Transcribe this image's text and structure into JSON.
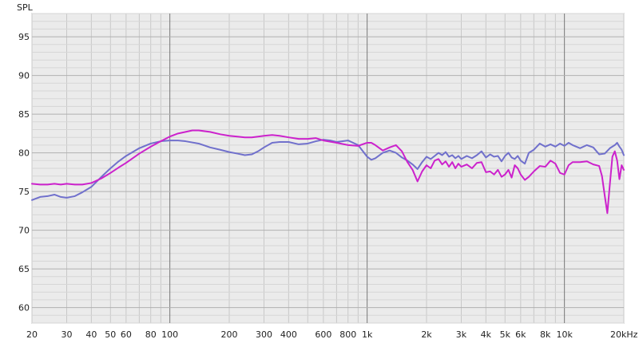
{
  "chart_data": {
    "type": "line",
    "title": "",
    "ylabel": "SPL",
    "xlabel": "",
    "x_scale": "log",
    "xlim": [
      20,
      20000
    ],
    "ylim": [
      58,
      98
    ],
    "x_major_grid": [
      100,
      1000,
      10000
    ],
    "y_ticks": [
      60,
      65,
      70,
      75,
      80,
      85,
      90,
      95
    ],
    "x_ticks": [
      {
        "value": 20,
        "label": "20"
      },
      {
        "value": 30,
        "label": "30"
      },
      {
        "value": 40,
        "label": "40"
      },
      {
        "value": 50,
        "label": "50"
      },
      {
        "value": 60,
        "label": "60"
      },
      {
        "value": 80,
        "label": "80"
      },
      {
        "value": 100,
        "label": "100"
      },
      {
        "value": 200,
        "label": "200"
      },
      {
        "value": 300,
        "label": "300"
      },
      {
        "value": 400,
        "label": "400"
      },
      {
        "value": 600,
        "label": "600"
      },
      {
        "value": 800,
        "label": "800"
      },
      {
        "value": 1000,
        "label": "1k"
      },
      {
        "value": 2000,
        "label": "2k"
      },
      {
        "value": 3000,
        "label": "3k"
      },
      {
        "value": 4000,
        "label": "4k"
      },
      {
        "value": 5000,
        "label": "5k"
      },
      {
        "value": 6000,
        "label": "6k"
      },
      {
        "value": 8000,
        "label": "8k"
      },
      {
        "value": 10000,
        "label": "10k"
      },
      {
        "value": 20000,
        "label": "20kHz"
      }
    ],
    "grid": true,
    "legend": "none",
    "series": [
      {
        "color": "#7070cc",
        "points": [
          [
            20,
            73.9
          ],
          [
            22,
            74.3
          ],
          [
            24,
            74.4
          ],
          [
            26,
            74.6
          ],
          [
            28,
            74.3
          ],
          [
            30,
            74.2
          ],
          [
            33,
            74.4
          ],
          [
            36,
            74.9
          ],
          [
            40,
            75.6
          ],
          [
            45,
            76.9
          ],
          [
            50,
            78.0
          ],
          [
            55,
            78.9
          ],
          [
            60,
            79.6
          ],
          [
            70,
            80.6
          ],
          [
            80,
            81.2
          ],
          [
            90,
            81.5
          ],
          [
            100,
            81.6
          ],
          [
            110,
            81.6
          ],
          [
            120,
            81.5
          ],
          [
            140,
            81.2
          ],
          [
            160,
            80.7
          ],
          [
            180,
            80.4
          ],
          [
            200,
            80.1
          ],
          [
            220,
            79.9
          ],
          [
            240,
            79.7
          ],
          [
            260,
            79.8
          ],
          [
            280,
            80.2
          ],
          [
            300,
            80.7
          ],
          [
            330,
            81.3
          ],
          [
            360,
            81.4
          ],
          [
            400,
            81.4
          ],
          [
            450,
            81.1
          ],
          [
            500,
            81.2
          ],
          [
            550,
            81.5
          ],
          [
            600,
            81.7
          ],
          [
            650,
            81.6
          ],
          [
            700,
            81.4
          ],
          [
            800,
            81.6
          ],
          [
            900,
            81.0
          ],
          [
            1000,
            79.5
          ],
          [
            1050,
            79.1
          ],
          [
            1100,
            79.3
          ],
          [
            1200,
            80.0
          ],
          [
            1300,
            80.3
          ],
          [
            1400,
            80.0
          ],
          [
            1500,
            79.4
          ],
          [
            1600,
            79.0
          ],
          [
            1700,
            78.5
          ],
          [
            1800,
            77.9
          ],
          [
            1900,
            78.8
          ],
          [
            2000,
            79.5
          ],
          [
            2100,
            79.2
          ],
          [
            2200,
            79.6
          ],
          [
            2300,
            80.0
          ],
          [
            2400,
            79.7
          ],
          [
            2500,
            80.1
          ],
          [
            2600,
            79.5
          ],
          [
            2700,
            79.7
          ],
          [
            2800,
            79.3
          ],
          [
            2900,
            79.6
          ],
          [
            3000,
            79.2
          ],
          [
            3200,
            79.6
          ],
          [
            3400,
            79.3
          ],
          [
            3600,
            79.7
          ],
          [
            3800,
            80.2
          ],
          [
            4000,
            79.4
          ],
          [
            4200,
            79.8
          ],
          [
            4400,
            79.5
          ],
          [
            4600,
            79.6
          ],
          [
            4800,
            78.9
          ],
          [
            5000,
            79.6
          ],
          [
            5200,
            80.0
          ],
          [
            5400,
            79.4
          ],
          [
            5600,
            79.2
          ],
          [
            5800,
            79.6
          ],
          [
            6000,
            79.0
          ],
          [
            6300,
            78.6
          ],
          [
            6600,
            80.0
          ],
          [
            7000,
            80.4
          ],
          [
            7500,
            81.2
          ],
          [
            8000,
            80.8
          ],
          [
            8500,
            81.1
          ],
          [
            9000,
            80.8
          ],
          [
            9500,
            81.2
          ],
          [
            10000,
            80.9
          ],
          [
            10500,
            81.3
          ],
          [
            11000,
            81.0
          ],
          [
            12000,
            80.6
          ],
          [
            13000,
            81.0
          ],
          [
            14000,
            80.7
          ],
          [
            15000,
            79.8
          ],
          [
            16000,
            79.9
          ],
          [
            17000,
            80.6
          ],
          [
            18000,
            81.0
          ],
          [
            18500,
            81.3
          ],
          [
            19000,
            80.8
          ],
          [
            19500,
            80.4
          ],
          [
            20000,
            79.7
          ]
        ]
      },
      {
        "color": "#cc22cc",
        "points": [
          [
            20,
            76.0
          ],
          [
            22,
            75.9
          ],
          [
            24,
            75.9
          ],
          [
            26,
            76.0
          ],
          [
            28,
            75.9
          ],
          [
            30,
            76.0
          ],
          [
            33,
            75.9
          ],
          [
            36,
            75.9
          ],
          [
            40,
            76.1
          ],
          [
            45,
            76.7
          ],
          [
            50,
            77.4
          ],
          [
            55,
            78.1
          ],
          [
            60,
            78.7
          ],
          [
            70,
            79.9
          ],
          [
            80,
            80.8
          ],
          [
            90,
            81.5
          ],
          [
            100,
            82.1
          ],
          [
            110,
            82.5
          ],
          [
            120,
            82.7
          ],
          [
            130,
            82.9
          ],
          [
            140,
            82.9
          ],
          [
            160,
            82.7
          ],
          [
            180,
            82.4
          ],
          [
            200,
            82.2
          ],
          [
            220,
            82.1
          ],
          [
            240,
            82.0
          ],
          [
            260,
            82.0
          ],
          [
            280,
            82.1
          ],
          [
            300,
            82.2
          ],
          [
            330,
            82.3
          ],
          [
            360,
            82.2
          ],
          [
            400,
            82.0
          ],
          [
            450,
            81.8
          ],
          [
            500,
            81.8
          ],
          [
            550,
            81.9
          ],
          [
            600,
            81.6
          ],
          [
            700,
            81.3
          ],
          [
            800,
            81.0
          ],
          [
            900,
            80.9
          ],
          [
            1000,
            81.3
          ],
          [
            1050,
            81.3
          ],
          [
            1100,
            81.0
          ],
          [
            1200,
            80.3
          ],
          [
            1300,
            80.7
          ],
          [
            1400,
            81.0
          ],
          [
            1500,
            80.2
          ],
          [
            1600,
            78.8
          ],
          [
            1700,
            77.8
          ],
          [
            1800,
            76.3
          ],
          [
            1900,
            77.6
          ],
          [
            2000,
            78.4
          ],
          [
            2100,
            78.0
          ],
          [
            2200,
            79.0
          ],
          [
            2300,
            79.2
          ],
          [
            2400,
            78.5
          ],
          [
            2500,
            78.9
          ],
          [
            2600,
            78.2
          ],
          [
            2700,
            78.8
          ],
          [
            2800,
            78.0
          ],
          [
            2900,
            78.6
          ],
          [
            3000,
            78.2
          ],
          [
            3200,
            78.5
          ],
          [
            3400,
            78.0
          ],
          [
            3600,
            78.7
          ],
          [
            3800,
            78.8
          ],
          [
            4000,
            77.5
          ],
          [
            4200,
            77.6
          ],
          [
            4400,
            77.2
          ],
          [
            4600,
            77.8
          ],
          [
            4800,
            76.9
          ],
          [
            5000,
            77.2
          ],
          [
            5200,
            77.8
          ],
          [
            5400,
            76.8
          ],
          [
            5600,
            78.4
          ],
          [
            5800,
            78.0
          ],
          [
            6000,
            77.2
          ],
          [
            6300,
            76.5
          ],
          [
            6600,
            76.9
          ],
          [
            7000,
            77.6
          ],
          [
            7500,
            78.3
          ],
          [
            8000,
            78.2
          ],
          [
            8500,
            79.0
          ],
          [
            9000,
            78.6
          ],
          [
            9500,
            77.4
          ],
          [
            10000,
            77.2
          ],
          [
            10500,
            78.4
          ],
          [
            11000,
            78.8
          ],
          [
            12000,
            78.8
          ],
          [
            13000,
            78.9
          ],
          [
            14000,
            78.5
          ],
          [
            15000,
            78.3
          ],
          [
            15500,
            77.0
          ],
          [
            16000,
            74.5
          ],
          [
            16500,
            72.2
          ],
          [
            17000,
            76.0
          ],
          [
            17500,
            79.5
          ],
          [
            18000,
            80.2
          ],
          [
            18500,
            79.0
          ],
          [
            19000,
            76.6
          ],
          [
            19500,
            78.4
          ],
          [
            20000,
            77.8
          ]
        ]
      }
    ]
  }
}
